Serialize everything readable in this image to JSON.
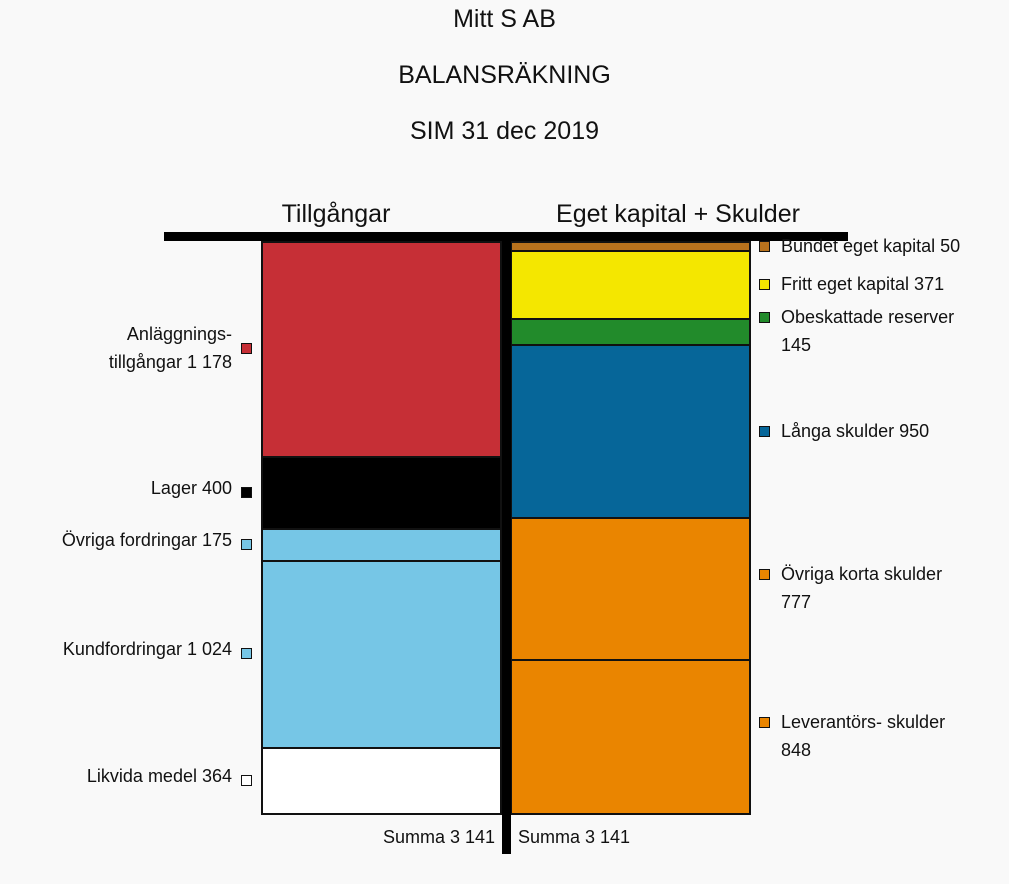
{
  "titles": {
    "company": "Mitt S AB",
    "report": "BALANSRÄKNING",
    "date": "SIM 31 dec 2019"
  },
  "chart_data": {
    "type": "stacked-block-balance-sheet",
    "title": "BALANSRÄKNING",
    "columns": [
      {
        "name": "Tillgångar",
        "total_label": "Summa 3 141",
        "total": 3141,
        "items": [
          {
            "label": "Anläggnings- tillgångar 1 178",
            "lines": [
              "Anläggnings-",
              "tillgångar 1 178"
            ],
            "value": 1178,
            "color": "#c62f36"
          },
          {
            "label": "Lager 400",
            "lines": [
              "Lager 400"
            ],
            "value": 400,
            "color": "#000000"
          },
          {
            "label": "Övriga fordringar 175",
            "lines": [
              "Övriga fordringar 175"
            ],
            "value": 175,
            "color": "#76c6e6"
          },
          {
            "label": "Kundfordringar 1 024",
            "lines": [
              "Kundfordringar 1 024"
            ],
            "value": 1024,
            "color": "#76c6e6"
          },
          {
            "label": "Likvida medel 364",
            "lines": [
              "Likvida medel 364"
            ],
            "value": 364,
            "color": "#ffffff"
          }
        ]
      },
      {
        "name": "Eget kapital + Skulder",
        "total_label": "Summa 3 141",
        "total": 3141,
        "items": [
          {
            "label": "Bundet eget kapital 50",
            "lines": [
              "Bundet eget kapital 50"
            ],
            "value": 50,
            "color": "#b8721d"
          },
          {
            "label": "Fritt eget kapital 371",
            "lines": [
              "Fritt eget kapital 371"
            ],
            "value": 371,
            "color": "#f4e700"
          },
          {
            "label": "Obeskattade reserver 145",
            "lines": [
              "Obeskattade reserver",
              "145"
            ],
            "value": 145,
            "color": "#228b2b"
          },
          {
            "label": "Långa skulder 950",
            "lines": [
              "Långa skulder 950"
            ],
            "value": 950,
            "color": "#066699"
          },
          {
            "label": "Övriga korta skulder 777",
            "lines": [
              "Övriga korta skulder",
              "777"
            ],
            "value": 777,
            "color": "#ea8500"
          },
          {
            "label": "Leverantörs- skulder 848",
            "lines": [
              "Leverantörs- skulder",
              "848"
            ],
            "value": 848,
            "color": "#ea8500"
          }
        ]
      }
    ]
  }
}
